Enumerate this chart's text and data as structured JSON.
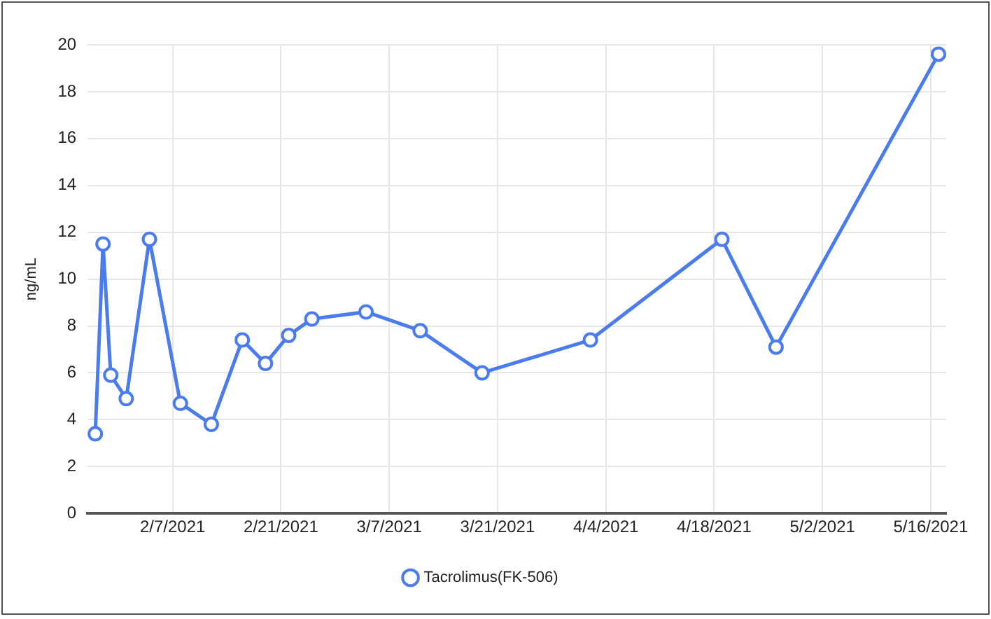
{
  "chart_data": {
    "type": "line",
    "ylabel": "ng/mL",
    "x": [
      "2021-01-28",
      "2021-01-29",
      "2021-01-30",
      "2021-02-01",
      "2021-02-04",
      "2021-02-08",
      "2021-02-12",
      "2021-02-16",
      "2021-02-19",
      "2021-02-22",
      "2021-02-25",
      "2021-03-04",
      "2021-03-11",
      "2021-03-19",
      "2021-04-02",
      "2021-04-19",
      "2021-04-26",
      "2021-05-17"
    ],
    "series": [
      {
        "name": "Tacrolimus(FK-506)",
        "color": "#4a7bef",
        "values": [
          3.4,
          11.5,
          5.9,
          4.9,
          11.7,
          4.7,
          3.8,
          7.4,
          6.4,
          7.6,
          8.3,
          8.6,
          7.8,
          6.0,
          7.4,
          11.7,
          7.1,
          19.6
        ]
      }
    ],
    "xlim": [
      "2021-01-27",
      "2021-05-18"
    ],
    "xticks": [
      {
        "value": "2021-02-07",
        "label": "2/7/2021"
      },
      {
        "value": "2021-02-21",
        "label": "2/21/2021"
      },
      {
        "value": "2021-03-07",
        "label": "3/7/2021"
      },
      {
        "value": "2021-03-21",
        "label": "3/21/2021"
      },
      {
        "value": "2021-04-04",
        "label": "4/4/2021"
      },
      {
        "value": "2021-04-18",
        "label": "4/18/2021"
      },
      {
        "value": "2021-05-02",
        "label": "5/2/2021"
      },
      {
        "value": "2021-05-16",
        "label": "5/16/2021"
      }
    ],
    "ylim": [
      0,
      20
    ],
    "yticks": [
      0,
      2,
      4,
      6,
      8,
      10,
      12,
      14,
      16,
      18,
      20
    ],
    "grid": true,
    "legend": "bottom",
    "marker": "circle",
    "line_style": "solid"
  }
}
